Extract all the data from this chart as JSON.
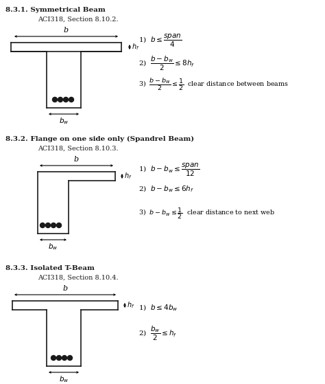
{
  "title1": "8.3.1. Symmetrical Beam",
  "subtitle1": "ACI318, Section 8.10.2.",
  "title2": "8.3.2. Flange on one side only (Spandrel Beam)",
  "subtitle2": "ACI318, Section 8.10.3.",
  "title3": "8.3.3. Isolated T-Beam",
  "subtitle3": "ACI318, Section 8.10.4.",
  "bg_color": "#ffffff",
  "line_color": "#1a1a1a"
}
